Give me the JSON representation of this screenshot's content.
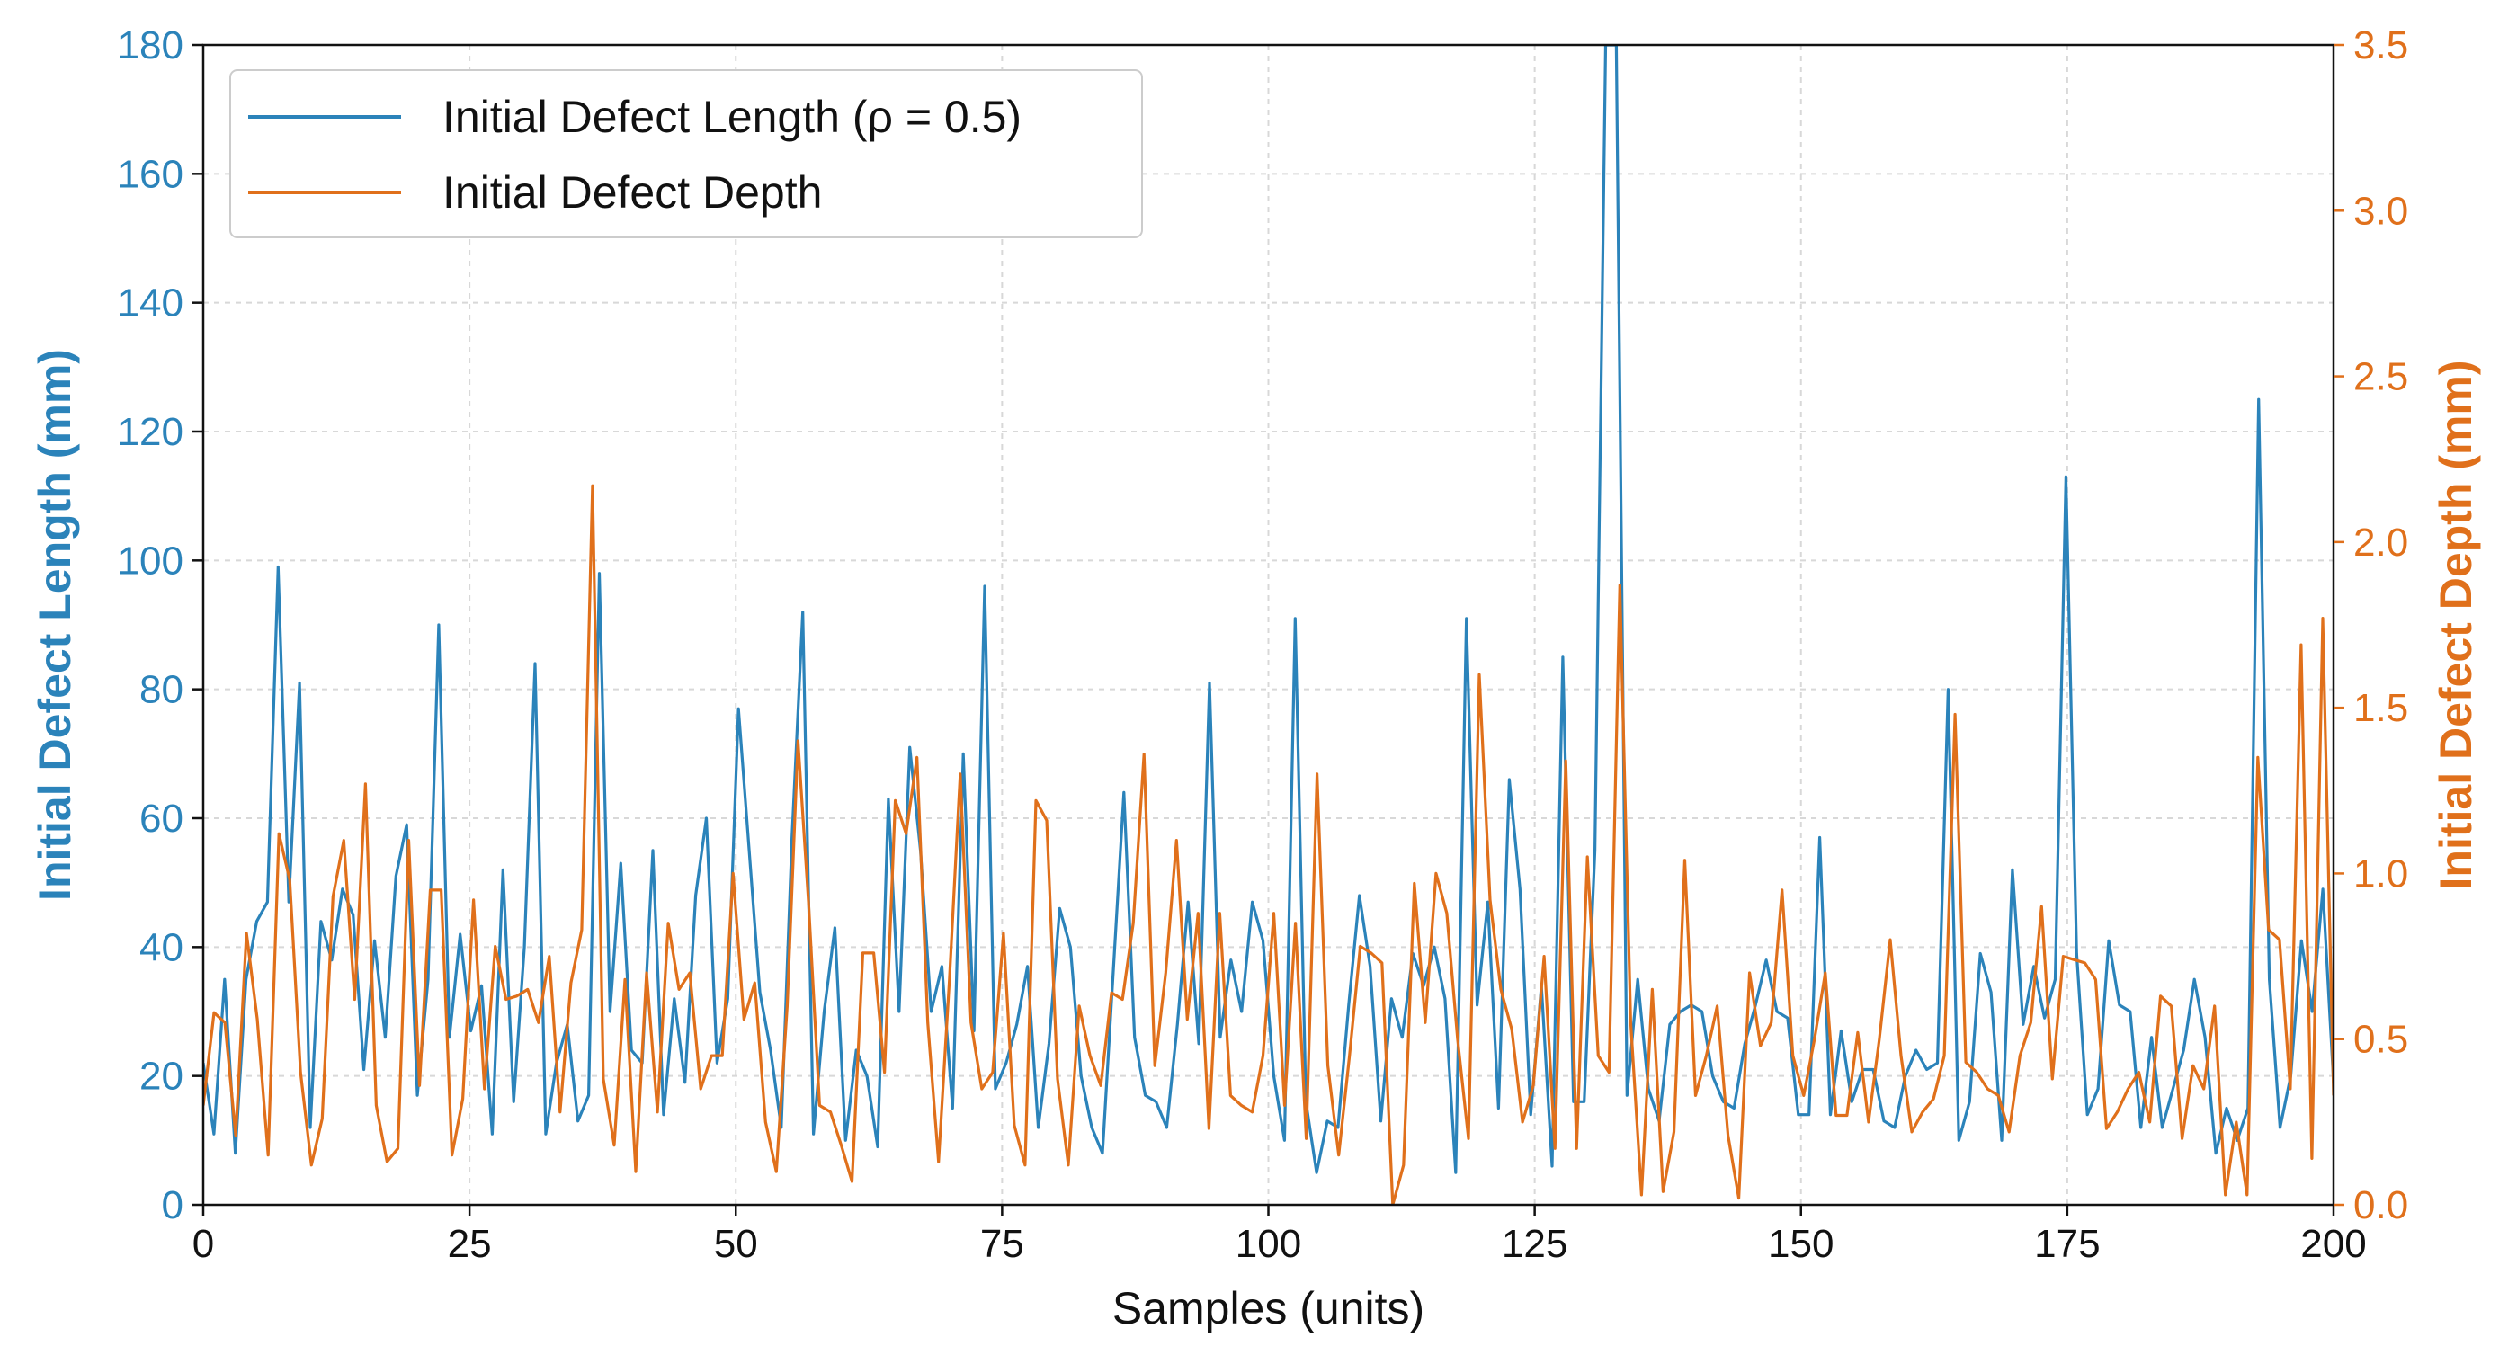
{
  "chart_data": {
    "type": "line",
    "xlabel": "Samples (units)",
    "ylabel_left": "Initial Defect Length (mm)",
    "ylabel_right": "Initial Defect Depth (mm)",
    "xlim": [
      0,
      200
    ],
    "ylim_left": [
      0,
      180
    ],
    "ylim_right": [
      0,
      3.5
    ],
    "x_ticks": [
      0,
      25,
      50,
      75,
      100,
      125,
      150,
      175,
      200
    ],
    "y_left_ticks": [
      0,
      20,
      40,
      60,
      80,
      100,
      120,
      140,
      160,
      180
    ],
    "y_right_ticks": [
      "0.0",
      "0.5",
      "1.0",
      "1.5",
      "2.0",
      "2.5",
      "3.0",
      "3.5"
    ],
    "grid": true,
    "legend_position": "top-left",
    "legend": [
      {
        "label": "Initial Defect Length (ρ = 0.5)",
        "series": "length"
      },
      {
        "label": "Initial Defect Depth",
        "series": "depth"
      }
    ],
    "colors": {
      "length": "#2b83ba",
      "depth": "#e0701b"
    },
    "series": [
      {
        "key": "length",
        "axis": "left",
        "values": [
          22,
          11,
          35,
          8,
          35,
          44,
          47,
          99,
          47,
          81,
          12,
          44,
          38,
          49,
          45,
          21,
          41,
          26,
          51,
          59,
          17,
          35,
          90,
          26,
          42,
          27,
          34,
          11,
          52,
          16,
          40,
          84,
          11,
          22,
          28,
          13,
          17,
          98,
          30,
          53,
          24,
          22,
          55,
          14,
          32,
          19,
          48,
          60,
          22,
          32,
          77,
          55,
          33,
          24,
          12,
          57,
          92,
          11,
          30,
          43,
          10,
          24,
          20,
          9,
          63,
          30,
          71,
          55,
          30,
          37,
          15,
          70,
          27,
          96,
          18,
          22,
          28,
          37,
          12,
          25,
          46,
          40,
          20,
          12,
          8,
          36,
          64,
          26,
          17,
          16,
          12,
          28,
          47,
          25,
          81,
          26,
          38,
          30,
          47,
          41,
          20,
          10,
          91,
          16,
          5,
          13,
          12,
          31,
          48,
          37,
          13,
          32,
          26,
          39,
          34,
          40,
          32,
          5,
          91,
          31,
          47,
          15,
          66,
          49,
          14,
          34,
          6,
          85,
          16,
          16,
          55,
          180,
          180,
          17,
          35,
          18,
          13,
          28,
          30,
          31,
          30,
          20,
          16,
          15,
          25,
          31,
          38,
          30,
          29,
          14,
          14,
          57,
          14,
          27,
          16,
          21,
          21,
          13,
          12,
          20,
          24,
          21,
          22,
          80,
          10,
          16,
          39,
          33,
          10,
          52,
          28,
          37,
          29,
          35,
          113,
          39,
          14,
          18,
          41,
          31,
          30,
          12,
          26,
          12,
          18,
          24,
          35,
          26,
          8,
          15,
          10,
          15,
          125,
          35,
          12,
          20,
          41,
          30,
          49,
          19
        ]
      },
      {
        "key": "depth",
        "axis": "right",
        "values": [
          0.3,
          0.58,
          0.55,
          0.21,
          0.82,
          0.56,
          0.15,
          1.12,
          0.98,
          0.4,
          0.12,
          0.26,
          0.93,
          1.1,
          0.62,
          1.27,
          0.3,
          0.13,
          0.17,
          1.1,
          0.36,
          0.95,
          0.95,
          0.15,
          0.32,
          0.92,
          0.35,
          0.78,
          0.62,
          0.63,
          0.65,
          0.55,
          0.75,
          0.28,
          0.67,
          0.83,
          2.17,
          0.38,
          0.18,
          0.68,
          0.1,
          0.7,
          0.28,
          0.85,
          0.65,
          0.7,
          0.35,
          0.45,
          0.45,
          1.0,
          0.56,
          0.67,
          0.25,
          0.1,
          0.6,
          1.4,
          0.9,
          0.3,
          0.28,
          0.18,
          0.07,
          0.76,
          0.76,
          0.4,
          1.22,
          1.12,
          1.35,
          0.55,
          0.13,
          0.68,
          1.3,
          0.55,
          0.35,
          0.4,
          0.82,
          0.24,
          0.12,
          1.22,
          1.16,
          0.38,
          0.12,
          0.6,
          0.45,
          0.36,
          0.64,
          0.62,
          0.85,
          1.36,
          0.42,
          0.7,
          1.1,
          0.56,
          0.88,
          0.23,
          0.88,
          0.33,
          0.3,
          0.28,
          0.45,
          0.88,
          0.3,
          0.85,
          0.2,
          1.3,
          0.42,
          0.15,
          0.45,
          0.78,
          0.76,
          0.73,
          0.0,
          0.12,
          0.97,
          0.55,
          1.0,
          0.88,
          0.5,
          0.2,
          1.6,
          0.92,
          0.65,
          0.53,
          0.25,
          0.36,
          0.75,
          0.17,
          1.34,
          0.17,
          1.05,
          0.45,
          0.4,
          1.87,
          0.55,
          0.03,
          0.65,
          0.04,
          0.22,
          1.04,
          0.33,
          0.45,
          0.6,
          0.21,
          0.02,
          0.7,
          0.48,
          0.55,
          0.95,
          0.45,
          0.33,
          0.5,
          0.7,
          0.27,
          0.27,
          0.52,
          0.25,
          0.5,
          0.8,
          0.45,
          0.22,
          0.28,
          0.32,
          0.45,
          1.48,
          0.43,
          0.4,
          0.35,
          0.33,
          0.22,
          0.45,
          0.55,
          0.9,
          0.38,
          0.75,
          0.74,
          0.73,
          0.68,
          0.23,
          0.28,
          0.35,
          0.4,
          0.25,
          0.63,
          0.6,
          0.2,
          0.42,
          0.35,
          0.6,
          0.03,
          0.25,
          0.03,
          1.35,
          0.83,
          0.8,
          0.35,
          1.69,
          0.14,
          1.77,
          0.33
        ]
      }
    ]
  }
}
